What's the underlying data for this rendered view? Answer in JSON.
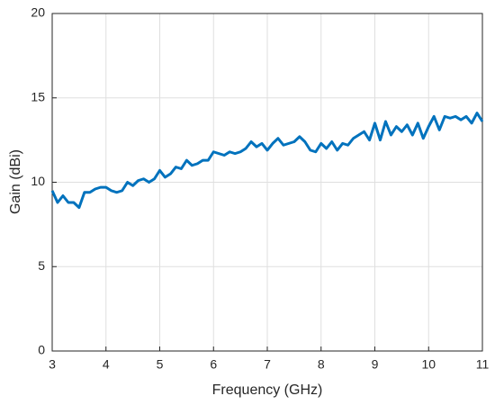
{
  "chart_data": {
    "type": "line",
    "xlabel": "Frequency (GHz)",
    "ylabel": "Gain (dBi)",
    "x": [
      3.0,
      3.1,
      3.2,
      3.3,
      3.4,
      3.5,
      3.6,
      3.7,
      3.8,
      3.9,
      4.0,
      4.1,
      4.2,
      4.3,
      4.4,
      4.5,
      4.6,
      4.7,
      4.8,
      4.9,
      5.0,
      5.1,
      5.2,
      5.3,
      5.4,
      5.5,
      5.6,
      5.7,
      5.8,
      5.9,
      6.0,
      6.1,
      6.2,
      6.3,
      6.4,
      6.5,
      6.6,
      6.7,
      6.8,
      6.9,
      7.0,
      7.1,
      7.2,
      7.3,
      7.4,
      7.5,
      7.6,
      7.7,
      7.8,
      7.9,
      8.0,
      8.1,
      8.2,
      8.3,
      8.4,
      8.5,
      8.6,
      8.7,
      8.8,
      8.9,
      9.0,
      9.1,
      9.2,
      9.3,
      9.4,
      9.5,
      9.6,
      9.7,
      9.8,
      9.9,
      10.0,
      10.1,
      10.2,
      10.3,
      10.4,
      10.5,
      10.6,
      10.7,
      10.8,
      10.9,
      11.0
    ],
    "values": [
      9.5,
      8.8,
      9.2,
      8.8,
      8.8,
      8.5,
      9.4,
      9.4,
      9.6,
      9.7,
      9.7,
      9.5,
      9.4,
      9.5,
      10.0,
      9.8,
      10.1,
      10.2,
      10.0,
      10.2,
      10.7,
      10.3,
      10.5,
      10.9,
      10.8,
      11.3,
      11.0,
      11.1,
      11.3,
      11.3,
      11.8,
      11.7,
      11.6,
      11.8,
      11.7,
      11.8,
      12.0,
      12.4,
      12.1,
      12.3,
      11.9,
      12.3,
      12.6,
      12.2,
      12.3,
      12.4,
      12.7,
      12.4,
      11.9,
      11.8,
      12.3,
      12.0,
      12.4,
      11.9,
      12.3,
      12.2,
      12.6,
      12.8,
      13.0,
      12.5,
      13.5,
      12.5,
      13.6,
      12.8,
      13.3,
      13.0,
      13.4,
      12.8,
      13.5,
      12.6,
      13.3,
      13.9,
      13.1,
      13.9,
      13.8,
      13.9,
      13.7,
      13.9,
      13.5,
      14.1,
      13.6
    ],
    "color": "#0072bd",
    "xlim": [
      3,
      11
    ],
    "xticks": [
      3,
      4,
      5,
      6,
      7,
      8,
      9,
      10,
      11
    ],
    "ylim": [
      0,
      20
    ],
    "yticks": [
      0,
      5,
      10,
      15,
      20
    ],
    "grid": true
  }
}
